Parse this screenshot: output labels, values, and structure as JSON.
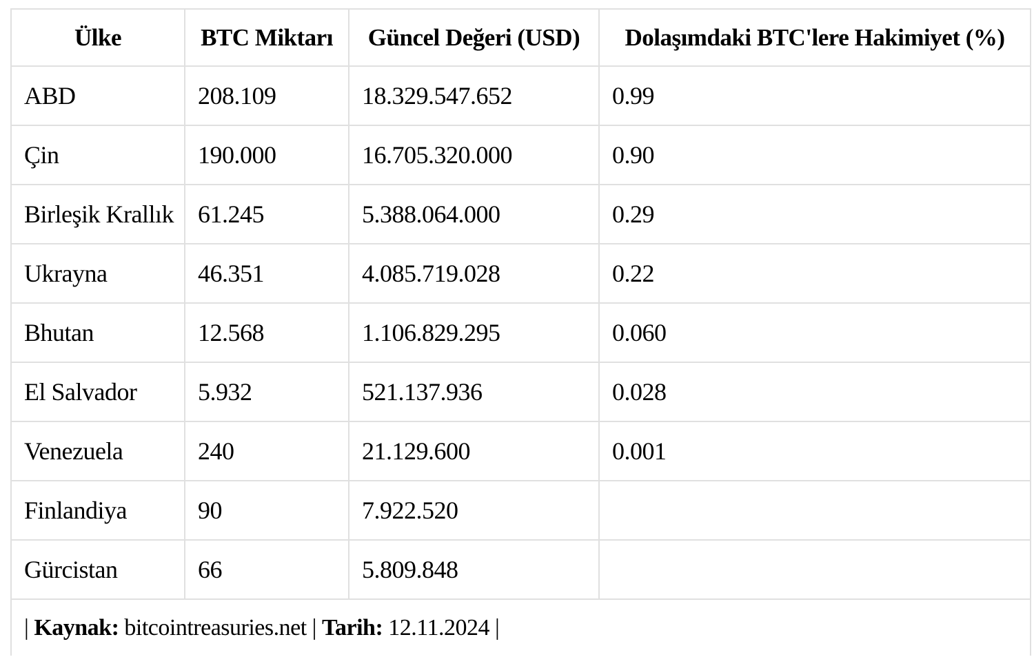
{
  "chart_data": {
    "type": "table",
    "title": "",
    "columns": [
      "Ülke",
      "BTC Miktarı",
      "Güncel Değeri (USD)",
      "Dolaşımdaki BTC'lere Hakimiyet (%)"
    ],
    "column_keys": [
      "country",
      "btc_amount",
      "current_value_usd",
      "dominance_pct"
    ],
    "rows": [
      {
        "country": "ABD",
        "btc_amount": "208.109",
        "current_value_usd": "18.329.547.652",
        "dominance_pct": "0.99"
      },
      {
        "country": "Çin",
        "btc_amount": "190.000",
        "current_value_usd": "16.705.320.000",
        "dominance_pct": "0.90"
      },
      {
        "country": "Birleşik Krallık",
        "btc_amount": "61.245",
        "current_value_usd": "5.388.064.000",
        "dominance_pct": "0.29"
      },
      {
        "country": "Ukrayna",
        "btc_amount": "46.351",
        "current_value_usd": "4.085.719.028",
        "dominance_pct": "0.22"
      },
      {
        "country": "Bhutan",
        "btc_amount": "12.568",
        "current_value_usd": "1.106.829.295",
        "dominance_pct": "0.060"
      },
      {
        "country": "El Salvador",
        "btc_amount": "5.932",
        "current_value_usd": "521.137.936",
        "dominance_pct": "0.028"
      },
      {
        "country": "Venezuela",
        "btc_amount": "240",
        "current_value_usd": "21.129.600",
        "dominance_pct": "0.001"
      },
      {
        "country": "Finlandiya",
        "btc_amount": "90",
        "current_value_usd": "7.922.520",
        "dominance_pct": ""
      },
      {
        "country": "Gürcistan",
        "btc_amount": "66",
        "current_value_usd": "5.809.848",
        "dominance_pct": ""
      }
    ]
  },
  "footer": {
    "parts": [
      {
        "text": "| ",
        "bold": false
      },
      {
        "text": "Kaynak:",
        "bold": true
      },
      {
        "text": " bitcointreasuries.net | ",
        "bold": false
      },
      {
        "text": "Tarih:",
        "bold": true
      },
      {
        "text": " 12.11.2024 |",
        "bold": false
      }
    ]
  },
  "colors": {
    "background": "#ffffff",
    "border": "#e0e0e0",
    "text": "#000000"
  }
}
